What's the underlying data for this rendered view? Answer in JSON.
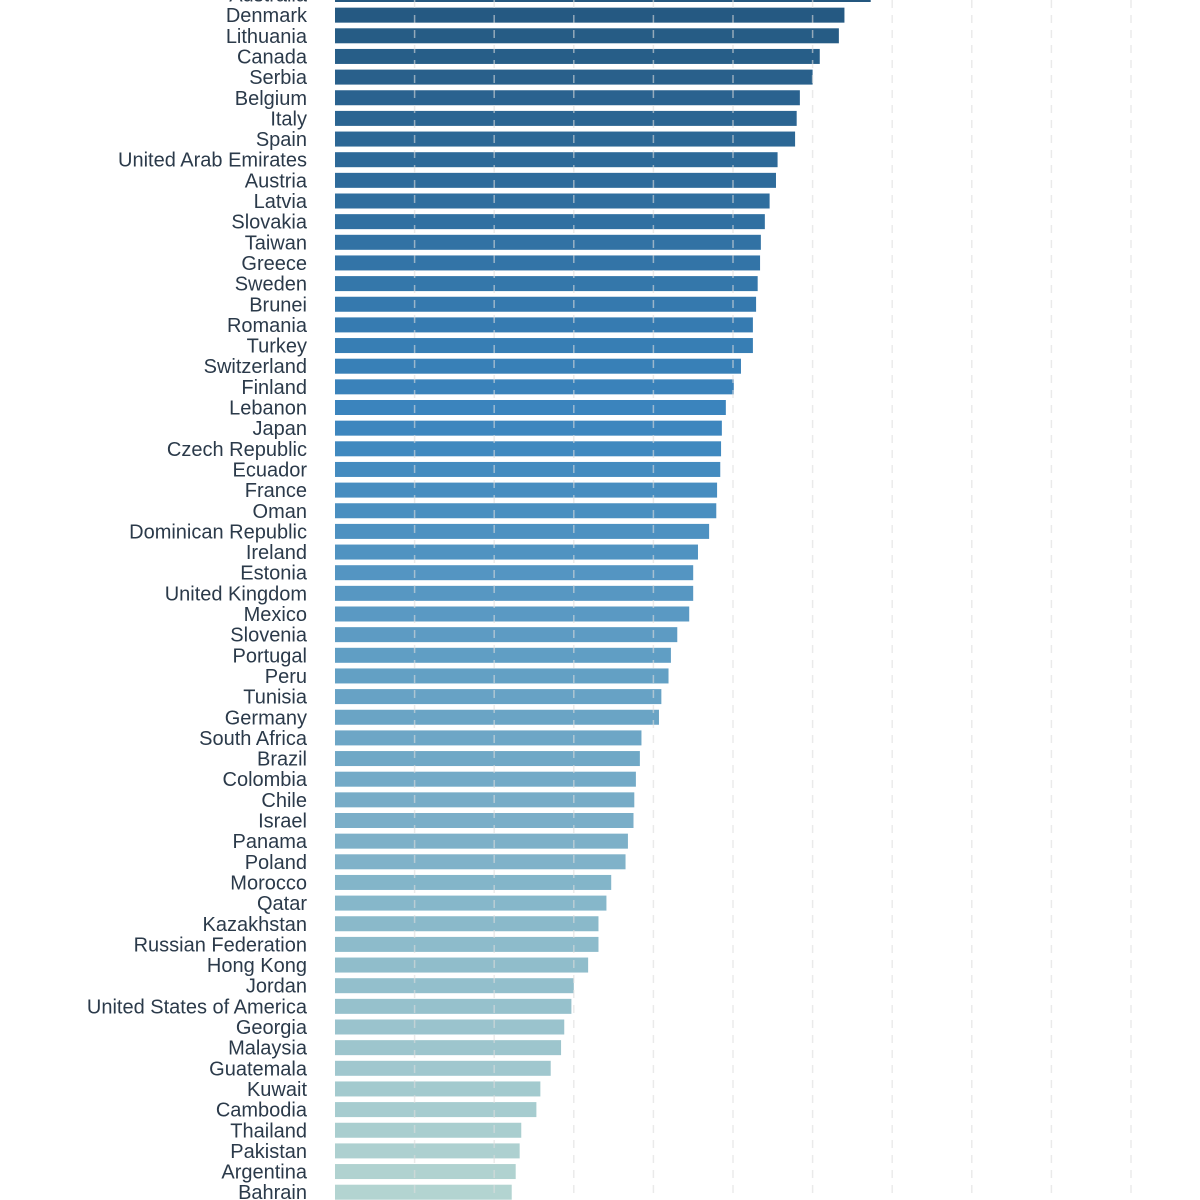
{
  "chart_data": {
    "type": "bar",
    "orientation": "horizontal",
    "title": "",
    "xlabel": "",
    "ylabel": "",
    "xlim": [
      0,
      10
    ],
    "grid": "vertical dashed",
    "legend": "none",
    "colors": {
      "top": "#24577f",
      "middle": "#3b85be",
      "bottom": "#b3d4d1",
      "grid": "#dddddd",
      "label": "#2b3a4a"
    },
    "categories": [
      "Australia",
      "Denmark",
      "Lithuania",
      "Canada",
      "Serbia",
      "Belgium",
      "Italy",
      "Spain",
      "United Arab Emirates",
      "Austria",
      "Latvia",
      "Slovakia",
      "Taiwan",
      "Greece",
      "Sweden",
      "Brunei",
      "Romania",
      "Turkey",
      "Switzerland",
      "Finland",
      "Lebanon",
      "Japan",
      "Czech Republic",
      "Ecuador",
      "France",
      "Oman",
      "Dominican Republic",
      "Ireland",
      "Estonia",
      "United Kingdom",
      "Mexico",
      "Slovenia",
      "Portugal",
      "Peru",
      "Tunisia",
      "Germany",
      "South Africa",
      "Brazil",
      "Colombia",
      "Chile",
      "Israel",
      "Panama",
      "Poland",
      "Morocco",
      "Qatar",
      "Kazakhstan",
      "Russian Federation",
      "Hong Kong",
      "Jordan",
      "United States of America",
      "Georgia",
      "Malaysia",
      "Guatemala",
      "Kuwait",
      "Cambodia",
      "Thailand",
      "Pakistan",
      "Argentina",
      "Bahrain"
    ],
    "values": [
      6.73,
      6.4,
      6.33,
      6.09,
      6.0,
      5.84,
      5.8,
      5.78,
      5.56,
      5.54,
      5.46,
      5.4,
      5.35,
      5.34,
      5.31,
      5.29,
      5.25,
      5.25,
      5.1,
      5.01,
      4.91,
      4.86,
      4.85,
      4.84,
      4.8,
      4.79,
      4.7,
      4.56,
      4.5,
      4.5,
      4.45,
      4.3,
      4.22,
      4.19,
      4.1,
      4.07,
      3.85,
      3.83,
      3.78,
      3.76,
      3.75,
      3.68,
      3.65,
      3.47,
      3.41,
      3.31,
      3.31,
      3.18,
      3.0,
      2.97,
      2.88,
      2.84,
      2.71,
      2.58,
      2.53,
      2.34,
      2.32,
      2.27,
      2.22
    ]
  }
}
